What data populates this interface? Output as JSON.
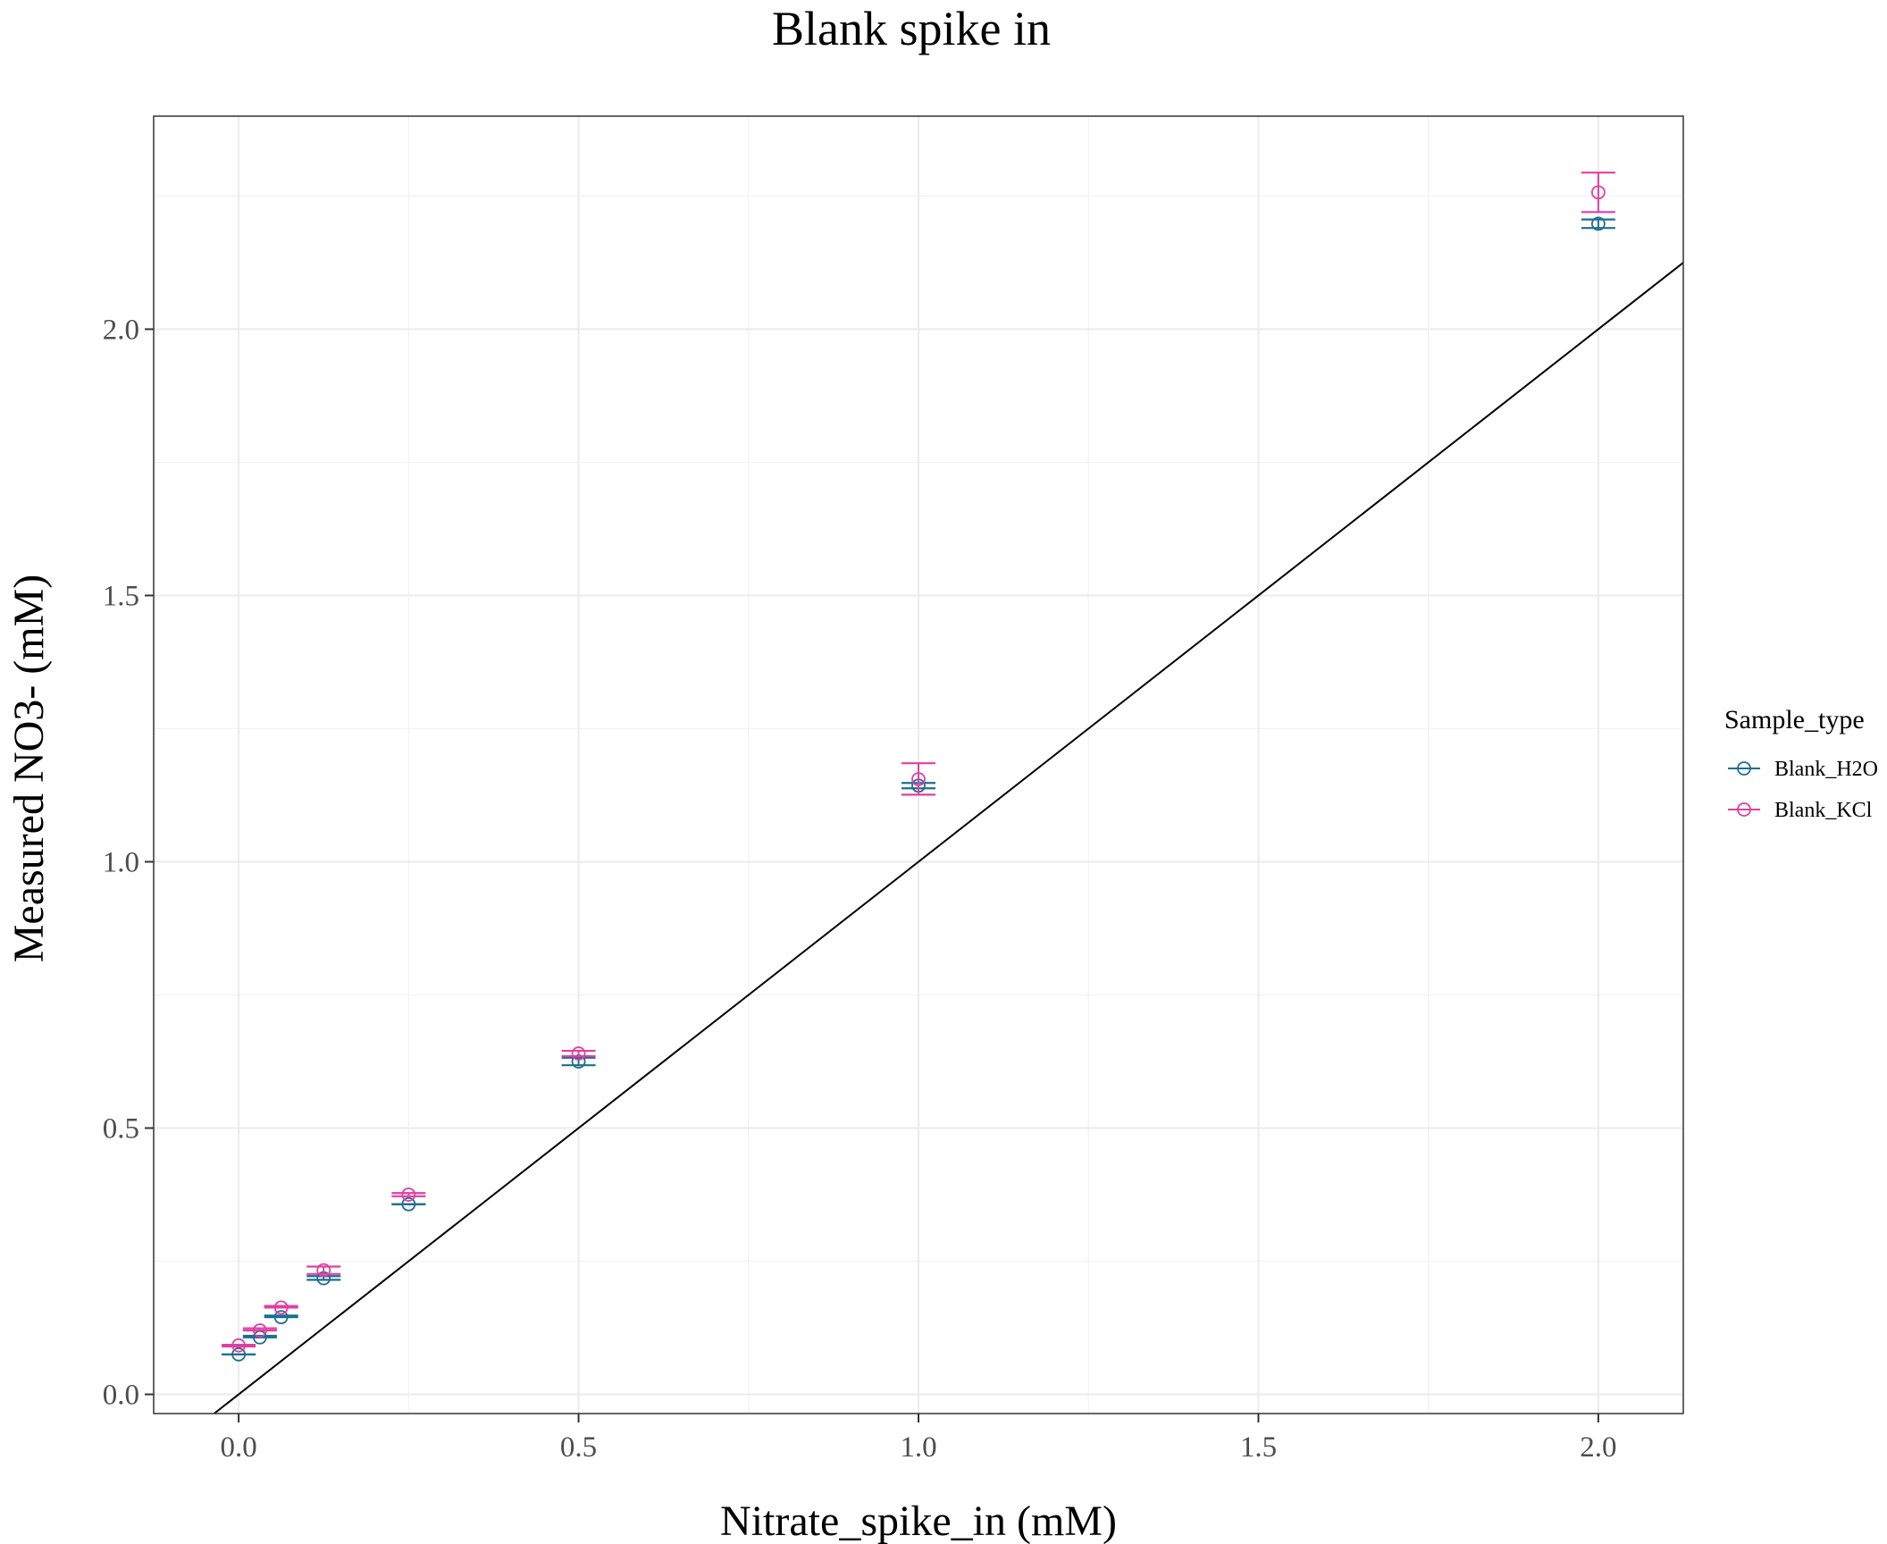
{
  "chart_data": {
    "type": "scatter",
    "title": "Blank spike in",
    "xlabel": "Nitrate_spike_in (mM)",
    "ylabel": "Measured NO3- (mM)",
    "xlim": [
      -0.125,
      2.125
    ],
    "ylim": [
      -0.036,
      2.4
    ],
    "x_ticks": [
      0.0,
      0.5,
      1.0,
      1.5,
      2.0
    ],
    "x_tick_labels": [
      "0.0",
      "0.5",
      "1.0",
      "1.5",
      "2.0"
    ],
    "y_ticks": [
      0.0,
      0.5,
      1.0,
      1.5,
      2.0
    ],
    "y_tick_labels": [
      "0.0",
      "0.5",
      "1.0",
      "1.5",
      "2.0"
    ],
    "grid": true,
    "reference_line": {
      "slope": 1,
      "intercept": 0,
      "color": "#000000"
    },
    "legend": {
      "title": "Sample_type",
      "position": "right"
    },
    "series": [
      {
        "name": "Blank_H2O",
        "color": "#1b6f8f",
        "x": [
          0.0,
          0.03125,
          0.0625,
          0.125,
          0.25,
          0.5,
          1.0,
          2.0
        ],
        "y": [
          0.075,
          0.107,
          0.145,
          0.218,
          0.357,
          0.625,
          1.143,
          2.198
        ],
        "y_min": [
          0.075,
          0.107,
          0.145,
          0.215,
          0.357,
          0.618,
          1.138,
          2.19
        ],
        "y_max": [
          0.075,
          0.11,
          0.148,
          0.222,
          0.357,
          0.632,
          1.148,
          2.206
        ]
      },
      {
        "name": "Blank_KCl",
        "color": "#e03fa2",
        "x": [
          0.0,
          0.03125,
          0.0625,
          0.125,
          0.25,
          0.5,
          1.0,
          2.0
        ],
        "y": [
          0.092,
          0.12,
          0.163,
          0.233,
          0.375,
          0.64,
          1.155,
          2.257
        ],
        "y_min": [
          0.09,
          0.12,
          0.163,
          0.226,
          0.372,
          0.635,
          1.126,
          2.22
        ],
        "y_max": [
          0.093,
          0.124,
          0.166,
          0.24,
          0.378,
          0.645,
          1.185,
          2.294
        ]
      }
    ]
  }
}
